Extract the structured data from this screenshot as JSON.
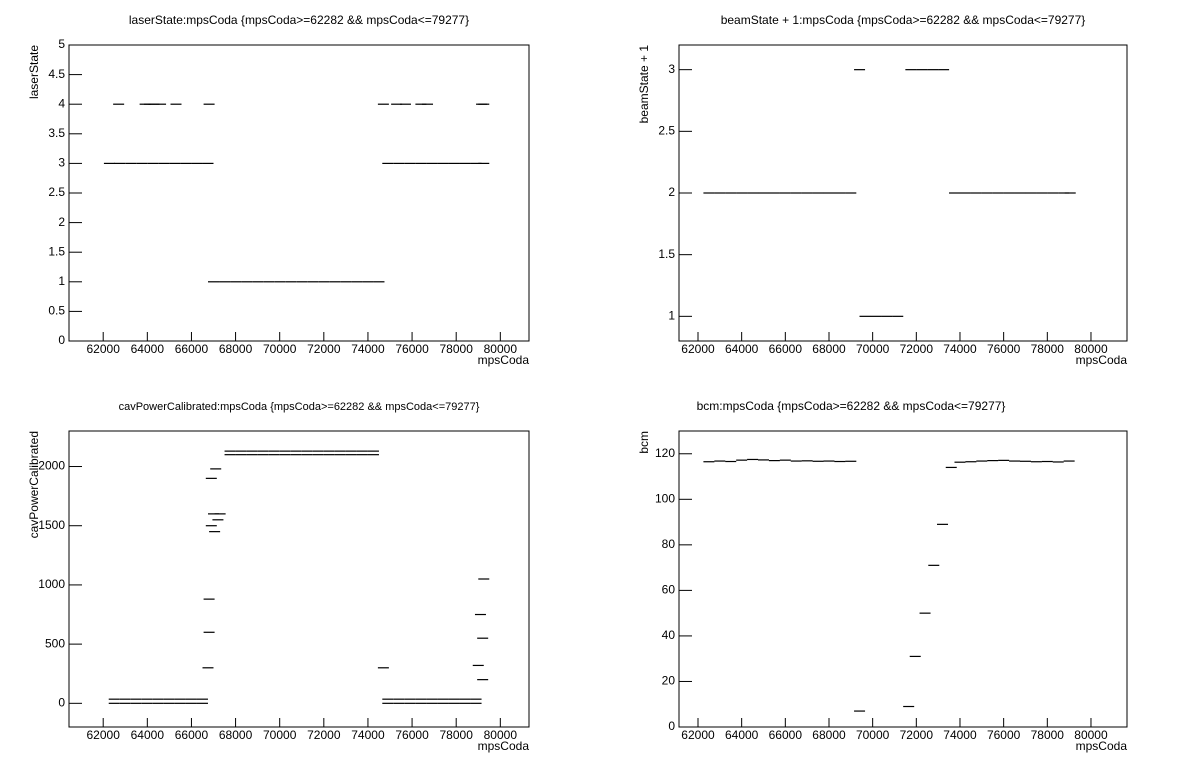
{
  "chart_data": [
    {
      "type": "scatter",
      "title": "laserState:mpsCoda {mpsCoda>=62282 && mpsCoda<=79277}",
      "x_label": "mpsCoda",
      "y_label": "laserState",
      "color": "#000000",
      "xlim": [
        60450,
        81300
      ],
      "xticks": [
        62000,
        64000,
        66000,
        68000,
        70000,
        72000,
        74000,
        76000,
        78000,
        80000
      ],
      "ylim": [
        0,
        5
      ],
      "yticks": [
        0,
        0.5,
        1,
        1.5,
        2,
        2.5,
        3,
        3.5,
        4,
        4.5,
        5
      ],
      "x": [
        62282,
        62750,
        63250,
        63750,
        64250,
        64750,
        65250,
        65750,
        66250,
        66750,
        67000,
        67500,
        68000,
        68500,
        69000,
        69500,
        70000,
        70500,
        71000,
        71500,
        72000,
        72500,
        73000,
        73500,
        74000,
        74500,
        74900,
        75400,
        75900,
        76400,
        76900,
        77400,
        77900,
        78400,
        78900,
        79250,
        62700,
        63900,
        64100,
        64300,
        64600,
        65300,
        66800,
        74700,
        75300,
        75700,
        76400,
        76700,
        79150,
        79250
      ],
      "values": [
        3,
        3,
        3,
        3,
        3,
        3,
        3,
        3,
        3,
        3,
        1,
        1,
        1,
        1,
        1,
        1,
        1,
        1,
        1,
        1,
        1,
        1,
        1,
        1,
        1,
        1,
        3,
        3,
        3,
        3,
        3,
        3,
        3,
        3,
        3,
        3,
        4,
        4,
        4,
        4,
        4,
        4,
        4,
        4,
        4,
        4,
        4,
        4,
        4,
        4
      ]
    },
    {
      "type": "scatter",
      "title": "beamState + 1:mpsCoda {mpsCoda>=62282 && mpsCoda<=79277}",
      "x_label": "mpsCoda",
      "y_label": "beamState + 1",
      "color": "#000000",
      "xlim": [
        61130,
        81650
      ],
      "xticks": [
        62000,
        64000,
        66000,
        68000,
        70000,
        72000,
        74000,
        76000,
        78000,
        80000
      ],
      "ylim": [
        0.8,
        3.2
      ],
      "yticks": [
        1,
        1.5,
        2,
        2.5,
        3
      ],
      "x": [
        62500,
        63000,
        63500,
        64000,
        64500,
        65000,
        65500,
        66000,
        66500,
        67000,
        67500,
        68000,
        68500,
        69000,
        69400,
        69650,
        70150,
        70650,
        71150,
        71750,
        72250,
        72750,
        73250,
        73750,
        74250,
        74750,
        75250,
        75750,
        76250,
        76750,
        77250,
        77750,
        78250,
        78750,
        79050
      ],
      "values": [
        2,
        2,
        2,
        2,
        2,
        2,
        2,
        2,
        2,
        2,
        2,
        2,
        2,
        2,
        3,
        1,
        1,
        1,
        1,
        3,
        3,
        3,
        3,
        2,
        2,
        2,
        2,
        2,
        2,
        2,
        2,
        2,
        2,
        2,
        2
      ]
    },
    {
      "type": "scatter",
      "title": "cavPowerCalibrated:mpsCoda {mpsCoda>=62282 && mpsCoda<=79277}",
      "x_label": "mpsCoda",
      "y_label": "cavPowerCalibrated",
      "color": "#000000",
      "xlim": [
        60450,
        81300
      ],
      "xticks": [
        62000,
        64000,
        66000,
        68000,
        70000,
        72000,
        74000,
        76000,
        78000,
        80000
      ],
      "ylim": [
        -200,
        2300
      ],
      "yticks": [
        0,
        500,
        1000,
        1500,
        2000
      ],
      "x": [
        62500,
        63000,
        63500,
        64000,
        64500,
        65000,
        65500,
        66000,
        66500,
        62500,
        63000,
        63500,
        64000,
        64500,
        65000,
        65500,
        66000,
        66500,
        66750,
        66800,
        66800,
        66900,
        66900,
        67000,
        67050,
        67100,
        67200,
        67300,
        67750,
        68250,
        68750,
        69250,
        69750,
        70250,
        70750,
        71250,
        71750,
        72250,
        72750,
        73250,
        73750,
        74250,
        67750,
        68250,
        68750,
        69250,
        69750,
        70250,
        70750,
        71250,
        71750,
        72250,
        72750,
        73250,
        73750,
        74250,
        74900,
        75400,
        75900,
        76400,
        76900,
        77400,
        77900,
        78400,
        78900,
        74900,
        75400,
        75900,
        76400,
        76900,
        77400,
        77900,
        78400,
        78900,
        74700,
        79000,
        79100,
        79200,
        79250,
        79200
      ],
      "values": [
        0,
        0,
        0,
        0,
        0,
        0,
        0,
        0,
        0,
        35,
        35,
        35,
        35,
        35,
        35,
        35,
        35,
        35,
        300,
        600,
        880,
        1500,
        1900,
        1600,
        1450,
        1980,
        1550,
        1600,
        2100,
        2100,
        2100,
        2100,
        2100,
        2100,
        2100,
        2100,
        2100,
        2100,
        2100,
        2100,
        2100,
        2100,
        2130,
        2130,
        2130,
        2130,
        2130,
        2130,
        2130,
        2130,
        2130,
        2130,
        2130,
        2130,
        2130,
        2130,
        0,
        0,
        0,
        0,
        0,
        0,
        0,
        0,
        0,
        35,
        35,
        35,
        35,
        35,
        35,
        35,
        35,
        35,
        300,
        320,
        750,
        550,
        1050,
        200
      ]
    },
    {
      "type": "scatter",
      "title": "bcm:mpsCoda {mpsCoda>=62282 && mpsCoda<=79277}",
      "x_label": "mpsCoda",
      "y_label": "bcm",
      "color": "#000000",
      "xlim": [
        61130,
        81650
      ],
      "xticks": [
        62000,
        64000,
        66000,
        68000,
        70000,
        72000,
        74000,
        76000,
        78000,
        80000
      ],
      "ylim": [
        0,
        130
      ],
      "yticks": [
        0,
        20,
        40,
        60,
        80,
        100,
        120
      ],
      "x": [
        62500,
        63000,
        63500,
        64000,
        64500,
        65000,
        65500,
        66000,
        66500,
        67000,
        67500,
        68000,
        68500,
        69000,
        69400,
        71650,
        71950,
        72400,
        72800,
        73200,
        73600,
        74000,
        74500,
        75000,
        75500,
        76000,
        76500,
        77000,
        77500,
        78000,
        78500,
        79000
      ],
      "values": [
        116.5,
        116.8,
        116.6,
        117.2,
        117.5,
        117.3,
        117.0,
        117.2,
        116.8,
        116.9,
        116.7,
        116.8,
        116.6,
        116.7,
        7,
        9,
        31,
        50,
        71,
        89,
        114,
        116.3,
        116.5,
        116.8,
        117.0,
        117.1,
        116.8,
        116.7,
        116.5,
        116.6,
        116.4,
        116.8
      ]
    }
  ]
}
